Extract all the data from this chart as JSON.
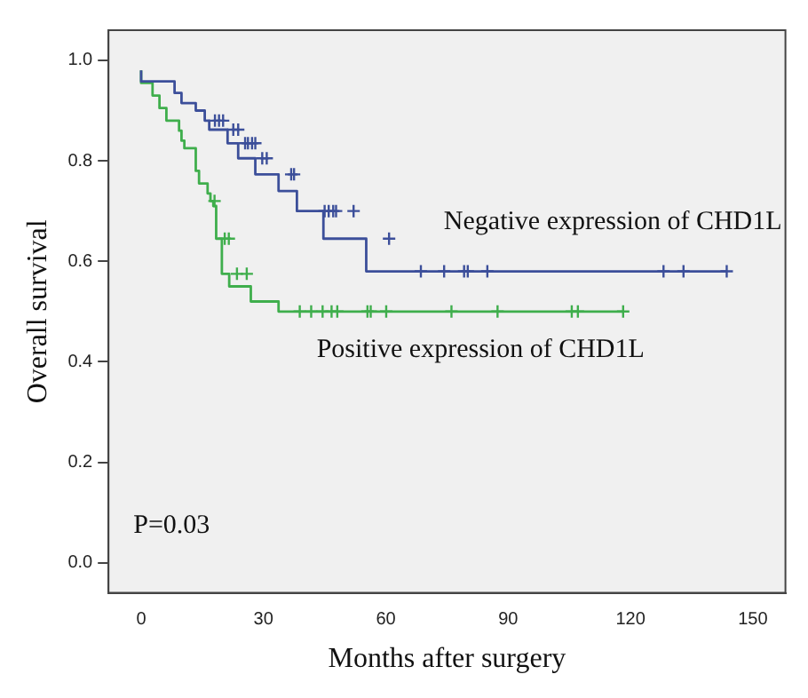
{
  "chart_data": {
    "type": "step",
    "xlabel": "Months after surgery",
    "ylabel": "Overall survival",
    "annotations": [
      "P=0.03"
    ],
    "xlim": [
      -8,
      158
    ],
    "ylim": [
      -0.06,
      1.06
    ],
    "xticks": [
      0,
      30,
      60,
      90,
      120,
      150
    ],
    "yticks": [
      {
        "value": 0,
        "label": "0.0"
      },
      {
        "value": 0.2,
        "label": "0.2"
      },
      {
        "value": 0.4,
        "label": "0.4"
      },
      {
        "value": 0.6,
        "label": "0.6"
      },
      {
        "value": 0.8,
        "label": "0.8"
      },
      {
        "value": 1,
        "label": "1.0"
      }
    ],
    "grid": false,
    "legend": false,
    "marker": "none",
    "series": [
      {
        "name": "Negative expression of CHD1L",
        "type": "step",
        "color": "#3c4f9a",
        "x": [
          0,
          8.2,
          9.9,
          13.4,
          15.6,
          16.7,
          21.2,
          23.8,
          28,
          33.7,
          38.2,
          44.7,
          55.2,
          65.5,
          143.6
        ],
        "values": [
          0.98,
          0.958,
          0.935,
          0.915,
          0.9,
          0.88,
          0.862,
          0.835,
          0.805,
          0.773,
          0.74,
          0.7,
          0.645,
          0.58,
          0.58
        ]
      },
      {
        "name": "Positive expression of CHD1L",
        "type": "step",
        "color": "#3fae4c",
        "x": [
          0,
          2.8,
          4.5,
          6.2,
          9.3,
          9.9,
          10.6,
          13.4,
          14.2,
          16.3,
          17,
          17.7,
          18.4,
          19.8,
          21.6,
          26.9,
          33.7,
          37.1,
          118.2
        ],
        "values": [
          0.98,
          0.955,
          0.93,
          0.905,
          0.88,
          0.86,
          0.84,
          0.825,
          0.78,
          0.755,
          0.735,
          0.72,
          0.71,
          0.645,
          0.575,
          0.55,
          0.52,
          0.5,
          0.5
        ]
      },
      {
        "type": "scatter",
        "marker": "cross",
        "color": "#3c4f9a",
        "x": [
          18.1,
          19.1,
          20.1,
          22.6,
          23.8,
          25.5,
          26.2,
          27.2,
          28,
          29.7,
          30.8,
          36.8,
          37.5,
          45,
          46,
          47.1,
          47.8,
          52.1,
          60.8,
          68.6,
          74.3,
          79.2,
          80.1,
          84.9,
          128.1,
          133,
          143.6
        ],
        "values": [
          0.88,
          0.88,
          0.88,
          0.862,
          0.862,
          0.835,
          0.835,
          0.835,
          0.835,
          0.805,
          0.805,
          0.773,
          0.773,
          0.7,
          0.7,
          0.7,
          0.7,
          0.7,
          0.645,
          0.58,
          0.58,
          0.58,
          0.58,
          0.58,
          0.58,
          0.58,
          0.58
        ]
      },
      {
        "type": "scatter",
        "marker": "cross",
        "color": "#3fae4c",
        "x": [
          18,
          20.5,
          21.5,
          23.5,
          25.9,
          38.9,
          41.7,
          44.5,
          46.7,
          48.1,
          55.5,
          56.3,
          60.1,
          76.1,
          87.4,
          105.6,
          107.1,
          118.2
        ],
        "values": [
          0.72,
          0.645,
          0.645,
          0.575,
          0.575,
          0.5,
          0.5,
          0.5,
          0.5,
          0.5,
          0.5,
          0.5,
          0.5,
          0.5,
          0.5,
          0.5,
          0.5,
          0.5
        ]
      }
    ]
  }
}
